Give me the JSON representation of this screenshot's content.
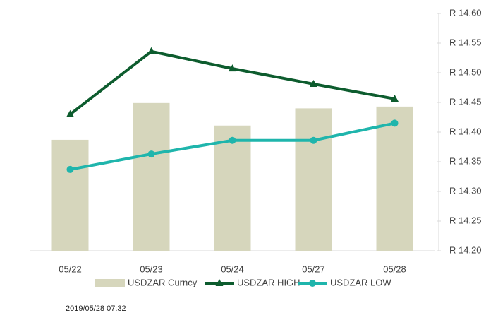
{
  "chart_data": {
    "type": "combo",
    "categories": [
      "05/22",
      "05/23",
      "05/24",
      "05/27",
      "05/28"
    ],
    "series": [
      {
        "name": "USDZAR Curncy",
        "type": "bar",
        "color": "#d6d6bc",
        "values": [
          14.387,
          14.449,
          14.411,
          14.44,
          14.443
        ]
      },
      {
        "name": "USDZAR HIGH",
        "type": "line",
        "marker": "triangle",
        "color": "#0d5c2e",
        "values": [
          14.43,
          14.536,
          14.507,
          14.481,
          14.456
        ]
      },
      {
        "name": "USDZAR LOW",
        "type": "line",
        "marker": "circle",
        "color": "#1fb5ac",
        "values": [
          14.337,
          14.363,
          14.386,
          14.386,
          14.415
        ]
      }
    ],
    "ylim": [
      14.2,
      14.6
    ],
    "yticks": [
      {
        "value": 14.2,
        "label": "R 14.20"
      },
      {
        "value": 14.25,
        "label": "R 14.25"
      },
      {
        "value": 14.3,
        "label": "R 14.30"
      },
      {
        "value": 14.35,
        "label": "R 14.35"
      },
      {
        "value": 14.4,
        "label": "R 14.40"
      },
      {
        "value": 14.45,
        "label": "R 14.45"
      },
      {
        "value": 14.5,
        "label": "R 14.50"
      },
      {
        "value": 14.55,
        "label": "R 14.55"
      },
      {
        "value": 14.6,
        "label": "R 14.60"
      }
    ],
    "axis_side": "right",
    "legend": "bottom",
    "footnote": "2019/05/28 07:32"
  }
}
